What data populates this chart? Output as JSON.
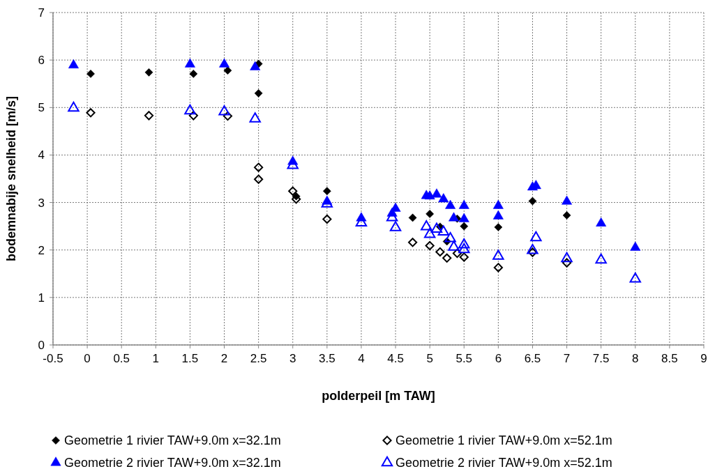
{
  "chart_data": {
    "type": "scatter",
    "xlabel": "polderpeil [m TAW]",
    "ylabel": "bodemnabije snelheid [m/s]",
    "xlim": [
      -0.5,
      9
    ],
    "xticks": [
      -0.5,
      0,
      0.5,
      1,
      1.5,
      2,
      2.5,
      3,
      3.5,
      4,
      4.5,
      5,
      5.5,
      6,
      6.5,
      7,
      7.5,
      8,
      8.5,
      9
    ],
    "ylim": [
      0,
      7
    ],
    "yticks": [
      0,
      1,
      2,
      3,
      4,
      5,
      6,
      7
    ],
    "grid": true,
    "legend": "bottom",
    "series": [
      {
        "name": "Geometrie 1 rivier TAW+9.0m x=32.1m",
        "color": "#000000",
        "marker": "diamond",
        "x": [
          0.05,
          0.9,
          1.55,
          2.05,
          2.5,
          2.5,
          3.05,
          3.5,
          4.75,
          5,
          5.15,
          5.25,
          5.4,
          5.5,
          6,
          6.5,
          7
        ],
        "values": [
          5.71,
          5.74,
          5.71,
          5.78,
          5.92,
          5.3,
          3.13,
          3.24,
          2.68,
          2.76,
          2.49,
          2.18,
          2.66,
          2.5,
          2.48,
          3.03,
          2.73
        ]
      },
      {
        "name": "Geometrie 1 rivier TAW+9.0m x=52.1m",
        "color": "#000000",
        "marker": "diamond",
        "x": [
          0.05,
          0.9,
          1.55,
          2.05,
          2.5,
          2.5,
          3,
          3.05,
          3.5,
          4.75,
          5,
          5.15,
          5.25,
          5.4,
          5.5,
          6,
          6.5,
          7
        ],
        "values": [
          4.89,
          4.83,
          4.83,
          4.82,
          3.74,
          3.49,
          3.24,
          3.07,
          2.65,
          2.16,
          2.09,
          1.96,
          1.83,
          1.93,
          1.85,
          1.63,
          1.95,
          1.73
        ]
      },
      {
        "name": "Geometrie 2 rivier TAW+9.0m x=32.1m",
        "color": "#0000ff",
        "marker": "triangle",
        "x": [
          -0.2,
          1.5,
          2,
          2.45,
          3,
          3.5,
          4,
          4.45,
          4.5,
          4.95,
          5,
          5.1,
          5.2,
          5.3,
          5.5,
          5.35,
          5.5,
          6,
          6,
          6.5,
          6.55,
          7,
          7.5,
          8
        ],
        "values": [
          5.89,
          5.91,
          5.91,
          5.85,
          3.86,
          3.02,
          2.67,
          2.77,
          2.87,
          3.14,
          3.13,
          3.17,
          3.07,
          2.93,
          2.93,
          2.67,
          2.65,
          2.93,
          2.71,
          3.32,
          3.35,
          3.02,
          2.56,
          2.05
        ]
      },
      {
        "name": "Geometrie 2 rivier TAW+9.0m x=52.1m",
        "color": "#0000ff",
        "marker": "triangle",
        "x": [
          -0.2,
          1.5,
          2,
          2.45,
          3,
          3.5,
          4,
          4.45,
          4.5,
          4.95,
          5,
          5.1,
          5.2,
          5.3,
          5.35,
          5.5,
          5.5,
          6,
          6.5,
          6.55,
          7,
          7.5,
          8
        ],
        "values": [
          4.99,
          4.93,
          4.91,
          4.76,
          3.78,
          2.97,
          2.57,
          2.68,
          2.47,
          2.49,
          2.33,
          2.44,
          2.38,
          2.24,
          2.06,
          2.11,
          2.01,
          1.87,
          1.99,
          2.26,
          1.82,
          1.79,
          1.39
        ]
      }
    ]
  }
}
